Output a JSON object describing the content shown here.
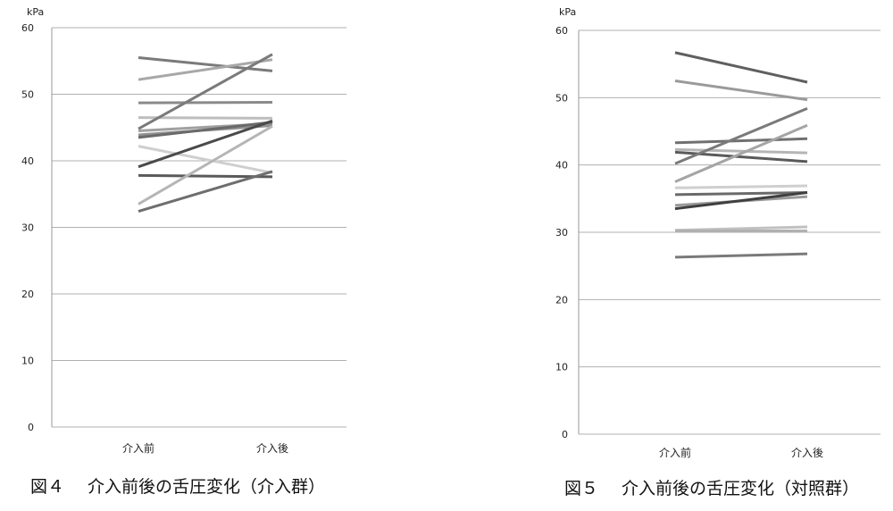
{
  "chart_data": [
    {
      "type": "line",
      "title": "",
      "caption_number": "図４",
      "caption_text": "介入前後の舌圧変化（介入群）",
      "ylabel": "kPa",
      "xlabel": "",
      "categories": [
        "介入前",
        "介入後"
      ],
      "ylim": [
        0,
        60
      ],
      "yticks": [
        "0",
        "10",
        "20",
        "30",
        "40",
        "50",
        "60"
      ],
      "grid": true,
      "legend": "none",
      "series": [
        {
          "values": [
            55.5,
            53.5
          ],
          "color": "#7a7a7a"
        },
        {
          "values": [
            52.2,
            55.2
          ],
          "color": "#a8a8a8"
        },
        {
          "values": [
            48.7,
            48.8
          ],
          "color": "#8a8a8a"
        },
        {
          "values": [
            46.5,
            46.4
          ],
          "color": "#bdbdbd"
        },
        {
          "values": [
            44.8,
            56.0
          ],
          "color": "#7a7a7a"
        },
        {
          "values": [
            44.5,
            45.6
          ],
          "color": "#a0a0a0"
        },
        {
          "values": [
            43.9,
            45.3
          ],
          "color": "#909090"
        },
        {
          "values": [
            43.5,
            45.8
          ],
          "color": "#6a6a6a"
        },
        {
          "values": [
            42.2,
            38.2
          ],
          "color": "#cfcfcf"
        },
        {
          "values": [
            39.1,
            46.0
          ],
          "color": "#4a4a4a"
        },
        {
          "values": [
            37.8,
            37.6
          ],
          "color": "#5a5a5a"
        },
        {
          "values": [
            33.5,
            45.2
          ],
          "color": "#b5b5b5"
        },
        {
          "values": [
            32.4,
            38.4
          ],
          "color": "#6e6e6e"
        }
      ]
    },
    {
      "type": "line",
      "title": "",
      "caption_number": "図５",
      "caption_text": "介入前後の舌圧変化（対照群）",
      "ylabel": "kPa",
      "xlabel": "",
      "categories": [
        "介入前",
        "介入後"
      ],
      "ylim": [
        0,
        60
      ],
      "yticks": [
        "0",
        "10",
        "20",
        "30",
        "40",
        "50",
        "60"
      ],
      "grid": true,
      "legend": "none",
      "series": [
        {
          "values": [
            56.7,
            52.3
          ],
          "color": "#5f5f5f"
        },
        {
          "values": [
            52.5,
            49.7
          ],
          "color": "#9a9a9a"
        },
        {
          "values": [
            43.3,
            43.9
          ],
          "color": "#707070"
        },
        {
          "values": [
            42.3,
            41.8
          ],
          "color": "#b5b5b5"
        },
        {
          "values": [
            41.9,
            40.5
          ],
          "color": "#5a5a5a"
        },
        {
          "values": [
            40.2,
            48.4
          ],
          "color": "#7a7a7a"
        },
        {
          "values": [
            37.5,
            45.9
          ],
          "color": "#a5a5a5"
        },
        {
          "values": [
            36.6,
            36.9
          ],
          "color": "#cfcfcf"
        },
        {
          "values": [
            35.6,
            35.9
          ],
          "color": "#6a6a6a"
        },
        {
          "values": [
            34.0,
            35.3
          ],
          "color": "#9a9a9a"
        },
        {
          "values": [
            33.5,
            35.9
          ],
          "color": "#3f3f3f"
        },
        {
          "values": [
            30.3,
            30.8
          ],
          "color": "#c0c0c0"
        },
        {
          "values": [
            30.2,
            30.2
          ],
          "color": "#b0b0b0"
        },
        {
          "values": [
            26.3,
            26.8
          ],
          "color": "#7a7a7a"
        }
      ]
    }
  ]
}
